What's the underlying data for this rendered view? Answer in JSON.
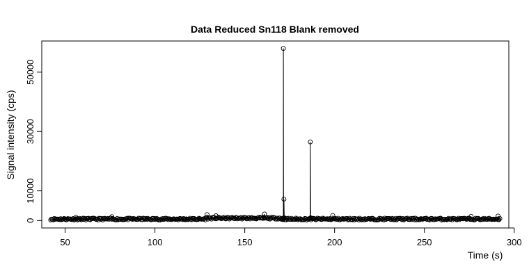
{
  "chart_data": {
    "type": "line",
    "title": "Data Reduced Sn118 Blank removed",
    "xlabel": "Time (s)",
    "ylabel": "Signal intensity (cps)",
    "xlim": [
      37,
      297
    ],
    "ylim": [
      -2500,
      60500
    ],
    "x_ticks": [
      "50",
      "100",
      "150",
      "200",
      "250",
      "300"
    ],
    "y_ticks": [
      "0",
      "10000",
      "30000",
      "50000"
    ],
    "markers": "open circles joined by lines",
    "baseline": {
      "x_start": 42,
      "x_end": 292,
      "typical": 500,
      "range": [
        0,
        1500
      ]
    },
    "peaks": [
      {
        "x": 171.5,
        "y": 58000
      },
      {
        "x": 171.8,
        "y": 7200
      },
      {
        "x": 186.5,
        "y": 26500
      }
    ],
    "notable_points": [
      {
        "x": 56,
        "y": 1100
      },
      {
        "x": 76,
        "y": 1300
      },
      {
        "x": 129,
        "y": 2000
      },
      {
        "x": 134,
        "y": 1600
      },
      {
        "x": 161,
        "y": 2200
      },
      {
        "x": 199,
        "y": 1700
      },
      {
        "x": 276,
        "y": 1400
      },
      {
        "x": 291,
        "y": 1500
      }
    ]
  }
}
